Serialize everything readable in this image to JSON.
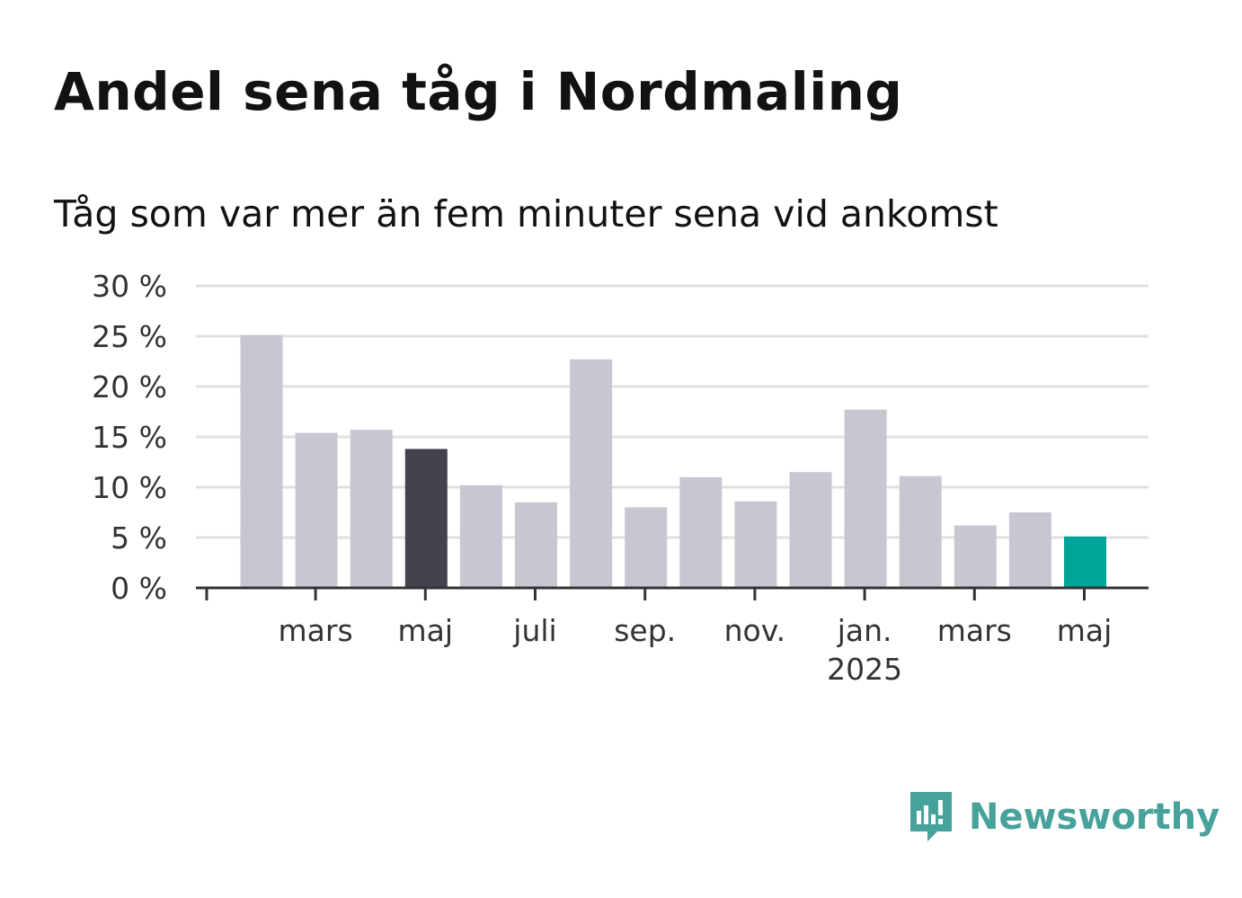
{
  "title": "Andel sena tåg i Nordmaling",
  "subtitle": "Tåg som var mer än fem minuter sena vid ankomst",
  "brand": {
    "name": "Newsworthy",
    "color": "#46a29a",
    "icon": "newsworthy-logo-icon"
  },
  "colors": {
    "bar": "#c8c7d1",
    "highlight_dark": "#43424d",
    "highlight_latest": "#00a59a",
    "grid": "#e0e0e0",
    "axis": "#333333"
  },
  "chart_data": {
    "type": "bar",
    "title": "Andel sena tåg i Nordmaling",
    "subtitle": "Tåg som var mer än fem minuter sena vid ankomst",
    "xlabel": "",
    "ylabel": "",
    "ylim": [
      0,
      30
    ],
    "yticks": [
      0,
      5,
      10,
      15,
      20,
      25,
      30
    ],
    "ytick_labels": [
      "0 %",
      "5 %",
      "10 %",
      "15 %",
      "20 %",
      "25 %",
      "30 %"
    ],
    "grid": true,
    "categories": [
      "2024-02",
      "2024-03",
      "2024-04",
      "2024-05",
      "2024-06",
      "2024-07",
      "2024-08",
      "2024-09",
      "2024-10",
      "2024-11",
      "2024-12",
      "2025-01",
      "2025-02",
      "2025-03",
      "2025-04",
      "2025-05"
    ],
    "values": [
      25.1,
      15.4,
      15.7,
      13.8,
      10.2,
      8.5,
      22.7,
      8.0,
      11.0,
      8.6,
      11.5,
      17.7,
      11.1,
      6.2,
      7.5,
      5.1
    ],
    "highlight": {
      "2024-05": "dark",
      "2025-05": "latest"
    },
    "xtick_labels": [
      {
        "at": "2024-03",
        "label": "mars"
      },
      {
        "at": "2024-05",
        "label": "maj"
      },
      {
        "at": "2024-07",
        "label": "juli"
      },
      {
        "at": "2024-09",
        "label": "sep."
      },
      {
        "at": "2024-11",
        "label": "nov."
      },
      {
        "at": "2025-01",
        "label": "jan.",
        "sublabel": "2025"
      },
      {
        "at": "2025-03",
        "label": "mars"
      },
      {
        "at": "2025-05",
        "label": "maj"
      }
    ]
  }
}
